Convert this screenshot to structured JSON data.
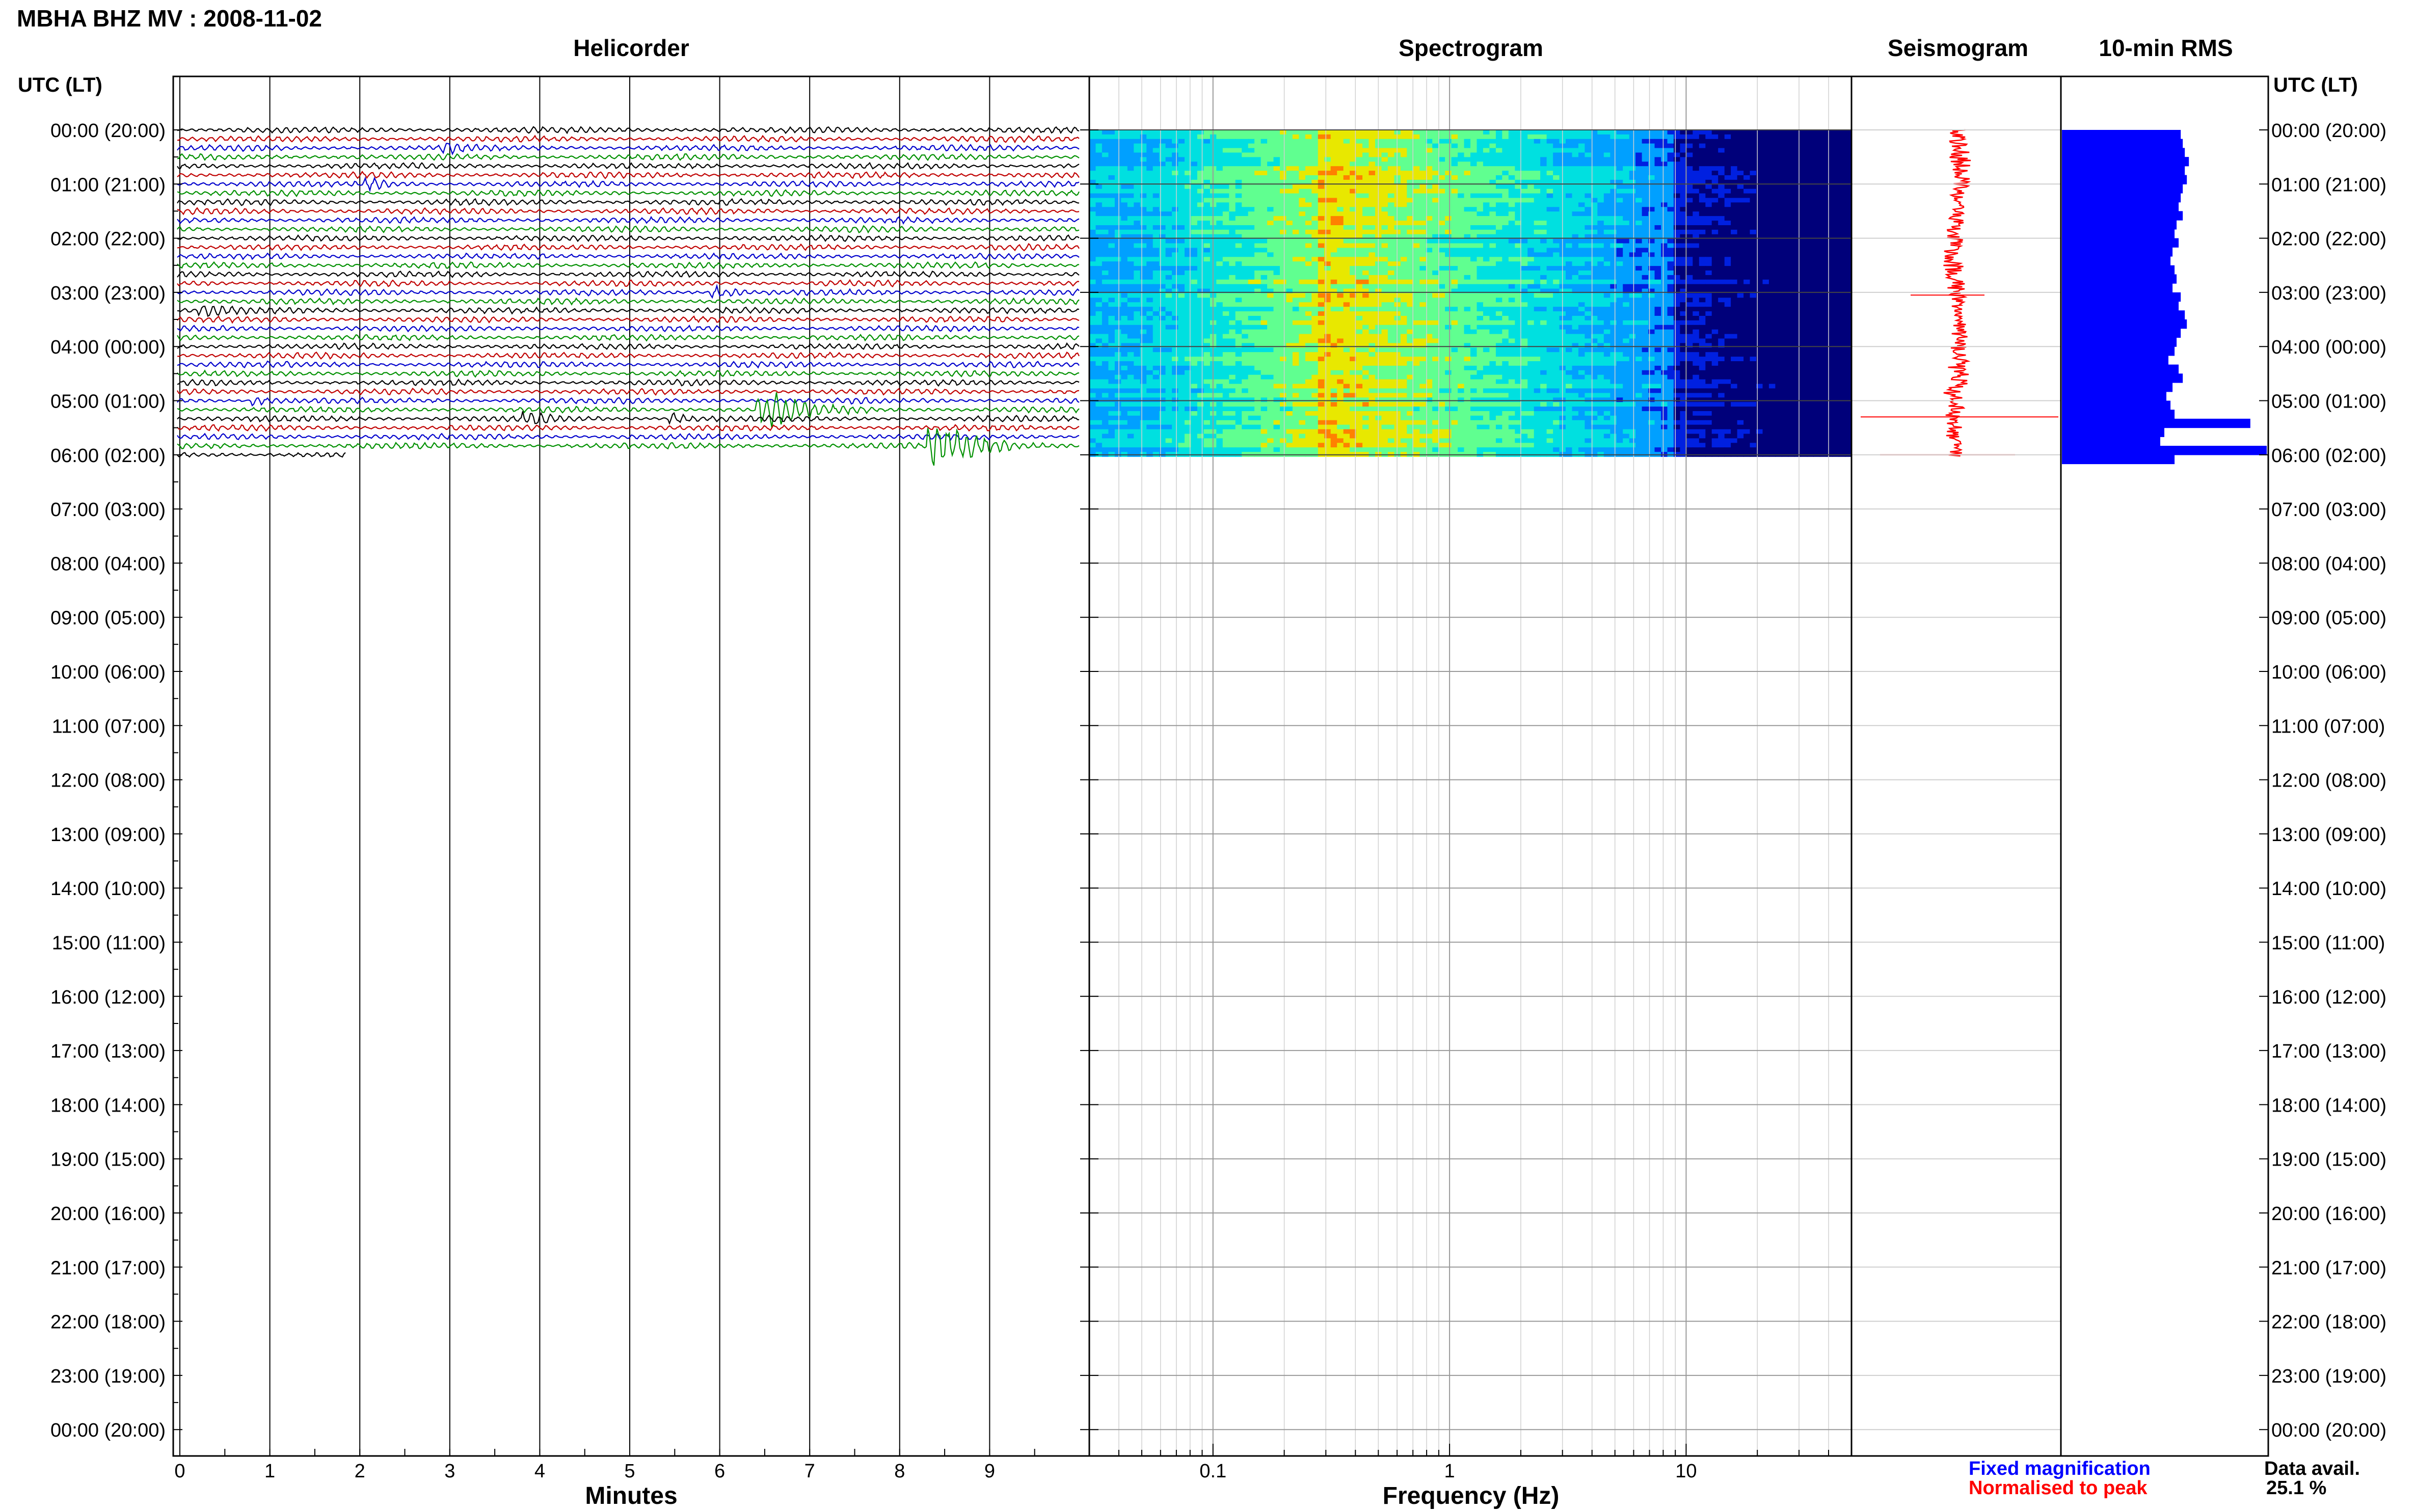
{
  "header": {
    "title": "MBHA BHZ MV : 2008-11-02"
  },
  "chart_data": {
    "type": "composite",
    "panels": {
      "helicorder": {
        "title": "Helicorder",
        "xlabel": "Minutes",
        "x_ticks": [
          0,
          1,
          2,
          3,
          4,
          5,
          6,
          7,
          8,
          9
        ],
        "trace_colors": [
          "#000000",
          "#c00000",
          "#0000cc",
          "#009000"
        ],
        "events": [
          {
            "hour": 0.38,
            "minute": 3.0,
            "amp": 5,
            "len": 0.5
          },
          {
            "hour": 1.0,
            "minute": 2.15,
            "amp": 6,
            "len": 0.6
          },
          {
            "hour": 3.0,
            "minute": 6.0,
            "amp": 8,
            "len": 0.6
          },
          {
            "hour": 3.3,
            "minute": 0.3,
            "amp": 6,
            "len": 0.7
          },
          {
            "hour": 5.0,
            "minute": 0.9,
            "amp": 5,
            "len": 0.5
          },
          {
            "hour": 5.3,
            "minute": 3.9,
            "amp": 7,
            "len": 0.6
          },
          {
            "hour": 5.3,
            "minute": 5.5,
            "amp": 7,
            "len": 0.6
          },
          {
            "hour": 5.15,
            "minute": 6.5,
            "amp": 28,
            "len": 1.2
          },
          {
            "hour": 5.8,
            "minute": 8.4,
            "amp": 35,
            "len": 1.4
          }
        ]
      },
      "spectrogram": {
        "title": "Spectrogram",
        "xlabel": "Frequency (Hz)",
        "x_tick_labels": [
          "0.1",
          "1",
          "10"
        ],
        "freq_range_hz": [
          0.03,
          50
        ],
        "scale": "log",
        "colormap": [
          "#00007a",
          "#0020e0",
          "#00a0ff",
          "#00e0e0",
          "#60ff90",
          "#e8e800",
          "#ff8000",
          "#e00000"
        ]
      },
      "seismogram": {
        "title": "Seismogram",
        "color_fixed": "#0000ff",
        "color_normalised": "#ff0000"
      },
      "rms": {
        "title": "10-min RMS",
        "bar_color": "#0000ff",
        "values": [
          0.58,
          0.59,
          0.6,
          0.62,
          0.6,
          0.61,
          0.59,
          0.58,
          0.57,
          0.59,
          0.56,
          0.55,
          0.57,
          0.54,
          0.53,
          0.55,
          0.56,
          0.54,
          0.58,
          0.57,
          0.6,
          0.61,
          0.58,
          0.56,
          0.55,
          0.52,
          0.57,
          0.59,
          0.54,
          0.51,
          0.53,
          0.55,
          0.92,
          0.5,
          0.48,
          1.0,
          0.55
        ]
      }
    },
    "y_axis": {
      "label": "UTC (LT)",
      "hour_labels": [
        "00:00 (20:00)",
        "01:00 (21:00)",
        "02:00 (22:00)",
        "03:00 (23:00)",
        "04:00 (00:00)",
        "05:00 (01:00)",
        "06:00 (02:00)",
        "07:00 (03:00)",
        "08:00 (04:00)",
        "09:00 (05:00)",
        "10:00 (06:00)",
        "11:00 (07:00)",
        "12:00 (08:00)",
        "13:00 (09:00)",
        "14:00 (10:00)",
        "15:00 (11:00)",
        "16:00 (12:00)",
        "17:00 (13:00)",
        "18:00 (14:00)",
        "19:00 (15:00)",
        "20:00 (16:00)",
        "21:00 (17:00)",
        "22:00 (18:00)",
        "23:00 (19:00)",
        "00:00 (20:00)"
      ],
      "data_end_hour": 6.03
    }
  },
  "legend": {
    "fixed": "Fixed magnification",
    "normalised": "Normalised to peak"
  },
  "availability": {
    "label": "Data avail.",
    "value": "25.1 %"
  }
}
